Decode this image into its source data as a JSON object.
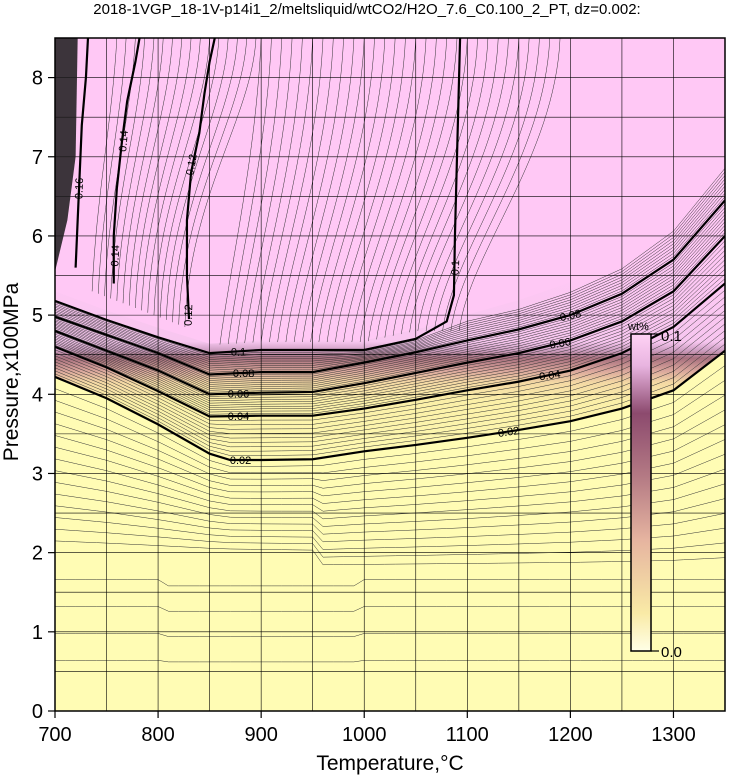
{
  "title": "2018-1VGP_18-1V-p14i1_2/meltsliquid/wtCO2/H2O_7.6_C0.100_2_PT, dz=0.002:",
  "chart_data": {
    "type": "heatmap",
    "title": "2018-1VGP_18-1V-p14i1_2/meltsliquid/wtCO2/H2O_7.6_C0.100_2_PT, dz=0.002:",
    "xlabel": "Temperature,°C",
    "ylabel": "Pressure,x100MPa",
    "xlim": [
      700,
      1350
    ],
    "ylim": [
      0,
      8.5
    ],
    "x_ticks": [
      700,
      800,
      900,
      1000,
      1100,
      1200,
      1300
    ],
    "x_tick_labels": [
      "700",
      "800",
      "900",
      "1000",
      "1100",
      "1200",
      "1300"
    ],
    "y_ticks": [
      0,
      1,
      2,
      3,
      4,
      5,
      6,
      7,
      8
    ],
    "y_tick_labels": [
      "0",
      "1",
      "2",
      "3",
      "4",
      "5",
      "6",
      "7",
      "8"
    ],
    "grid": true,
    "contour_interval": 0.002,
    "colorbar": {
      "title": "wt%",
      "min": 0.0,
      "max": 0.1,
      "min_label": "0.0",
      "max_label": "0.1",
      "colors": [
        "#ffffe6",
        "#f9eaa6",
        "#e6b4a0",
        "#b47a84",
        "#8c4a6e",
        "#e8b4e0",
        "#ffd2f5"
      ]
    },
    "major_contours": [
      {
        "level": 0.02,
        "label": "0.02",
        "points": [
          [
            700,
            4.22
          ],
          [
            750,
            3.95
          ],
          [
            800,
            3.62
          ],
          [
            850,
            3.25
          ],
          [
            870,
            3.17
          ],
          [
            900,
            3.17
          ],
          [
            950,
            3.18
          ],
          [
            1000,
            3.28
          ],
          [
            1050,
            3.36
          ],
          [
            1100,
            3.45
          ],
          [
            1150,
            3.55
          ],
          [
            1200,
            3.66
          ],
          [
            1250,
            3.82
          ],
          [
            1300,
            4.05
          ],
          [
            1350,
            4.55
          ]
        ]
      },
      {
        "level": 0.04,
        "label": "0.04",
        "points": [
          [
            700,
            4.6
          ],
          [
            750,
            4.34
          ],
          [
            800,
            4.04
          ],
          [
            850,
            3.72
          ],
          [
            900,
            3.73
          ],
          [
            950,
            3.73
          ],
          [
            1000,
            3.82
          ],
          [
            1050,
            3.93
          ],
          [
            1100,
            4.05
          ],
          [
            1150,
            4.16
          ],
          [
            1200,
            4.3
          ],
          [
            1250,
            4.52
          ],
          [
            1300,
            4.85
          ],
          [
            1350,
            5.4
          ]
        ]
      },
      {
        "level": 0.06,
        "label": "0.06",
        "points": [
          [
            700,
            4.8
          ],
          [
            750,
            4.55
          ],
          [
            800,
            4.3
          ],
          [
            850,
            4.0
          ],
          [
            900,
            4.02
          ],
          [
            950,
            4.03
          ],
          [
            1000,
            4.14
          ],
          [
            1050,
            4.27
          ],
          [
            1100,
            4.4
          ],
          [
            1150,
            4.52
          ],
          [
            1200,
            4.68
          ],
          [
            1250,
            4.92
          ],
          [
            1300,
            5.3
          ],
          [
            1350,
            6.0
          ]
        ]
      },
      {
        "level": 0.08,
        "label": "0.08",
        "points": [
          [
            700,
            4.98
          ],
          [
            750,
            4.75
          ],
          [
            800,
            4.52
          ],
          [
            850,
            4.25
          ],
          [
            900,
            4.28
          ],
          [
            950,
            4.28
          ],
          [
            1000,
            4.4
          ],
          [
            1050,
            4.53
          ],
          [
            1100,
            4.68
          ],
          [
            1150,
            4.82
          ],
          [
            1200,
            5.0
          ],
          [
            1250,
            5.27
          ],
          [
            1300,
            5.7
          ],
          [
            1350,
            6.45
          ]
        ]
      },
      {
        "level": 0.1,
        "label": "0.1",
        "points": [
          [
            700,
            5.18
          ],
          [
            750,
            4.94
          ],
          [
            800,
            4.72
          ],
          [
            850,
            4.52
          ],
          [
            900,
            4.56
          ],
          [
            950,
            4.56
          ],
          [
            1000,
            4.56
          ],
          [
            1050,
            4.7
          ],
          [
            1080,
            4.92
          ],
          [
            1087,
            5.25
          ],
          [
            1088,
            6.0
          ],
          [
            1090,
            7.0
          ],
          [
            1093,
            8.5
          ]
        ]
      },
      {
        "level": 0.12,
        "label": "0.12",
        "points": [
          [
            830,
            4.95
          ],
          [
            828,
            5.5
          ],
          [
            828,
            6.2
          ],
          [
            832,
            6.8
          ],
          [
            840,
            7.3
          ],
          [
            845,
            7.8
          ],
          [
            850,
            8.2
          ],
          [
            855,
            8.5
          ]
        ]
      },
      {
        "level": 0.14,
        "label": "0.14",
        "points": [
          [
            757,
            5.4
          ],
          [
            757,
            6.0
          ],
          [
            760,
            6.6
          ],
          [
            765,
            7.2
          ],
          [
            770,
            7.7
          ],
          [
            778,
            8.2
          ],
          [
            782,
            8.5
          ]
        ]
      },
      {
        "level": 0.16,
        "label": "0.16",
        "points": [
          [
            720,
            5.6
          ],
          [
            722,
            6.2
          ],
          [
            724,
            6.8
          ],
          [
            726,
            7.4
          ],
          [
            730,
            8.0
          ],
          [
            732,
            8.5
          ]
        ]
      }
    ],
    "region_samples": {
      "below_0.02": "pale yellow",
      "0.02_to_0.1": "rose to dark mauve gradient",
      "above_0.1": "pink"
    }
  }
}
